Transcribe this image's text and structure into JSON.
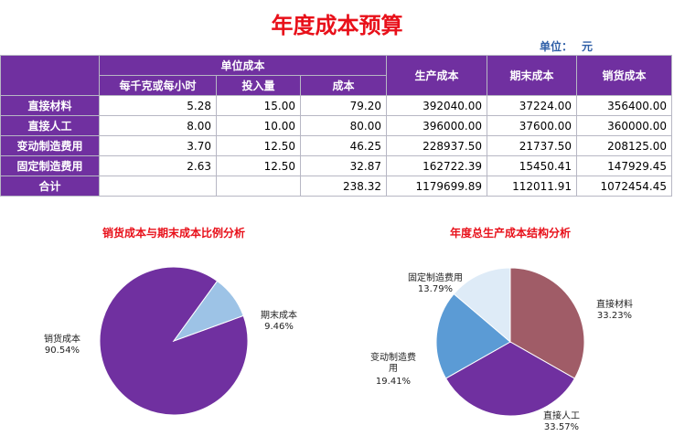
{
  "title": "年度成本预算",
  "unit_label": "单位：",
  "unit_value": "元",
  "table": {
    "group_header": "单位成本",
    "sub_headers": [
      "每千克或每小时",
      "投入量",
      "成本"
    ],
    "headers_right": [
      "生产成本",
      "期末成本",
      "销货成本"
    ],
    "rows": [
      {
        "name": "直接材料",
        "cells": [
          "5.28",
          "15.00",
          "79.20",
          "392040.00",
          "37224.00",
          "356400.00"
        ]
      },
      {
        "name": "直接人工",
        "cells": [
          "8.00",
          "10.00",
          "80.00",
          "396000.00",
          "37600.00",
          "360000.00"
        ]
      },
      {
        "name": "变动制造费用",
        "cells": [
          "3.70",
          "12.50",
          "46.25",
          "228937.50",
          "21737.50",
          "208125.00"
        ]
      },
      {
        "name": "固定制造费用",
        "cells": [
          "2.63",
          "12.50",
          "32.87",
          "162722.39",
          "15450.41",
          "147929.45"
        ]
      },
      {
        "name": "合计",
        "cells": [
          "",
          "",
          "238.32",
          "1179699.89",
          "112011.91",
          "1072454.45"
        ]
      }
    ]
  },
  "chart_data": [
    {
      "type": "pie",
      "title": "销货成本与期末成本比例分析",
      "labels": [
        "销货成本",
        "期末成本"
      ],
      "percent_labels": [
        "90.54%",
        "9.46%"
      ],
      "values": [
        90.54,
        9.46
      ],
      "colors": [
        "#7030a0",
        "#9dc3e6"
      ]
    },
    {
      "type": "pie",
      "title": "年度总生产成本结构分析",
      "labels": [
        "直接材料",
        "直接人工",
        "变动制造费用",
        "固定制造费用"
      ],
      "percent_labels": [
        "33.23%",
        "33.57%",
        "19.41%",
        "13.79%"
      ],
      "values": [
        33.23,
        33.57,
        19.41,
        13.79
      ],
      "colors": [
        "#a05c67",
        "#7030a0",
        "#5b9bd5",
        "#deebf7"
      ]
    }
  ]
}
